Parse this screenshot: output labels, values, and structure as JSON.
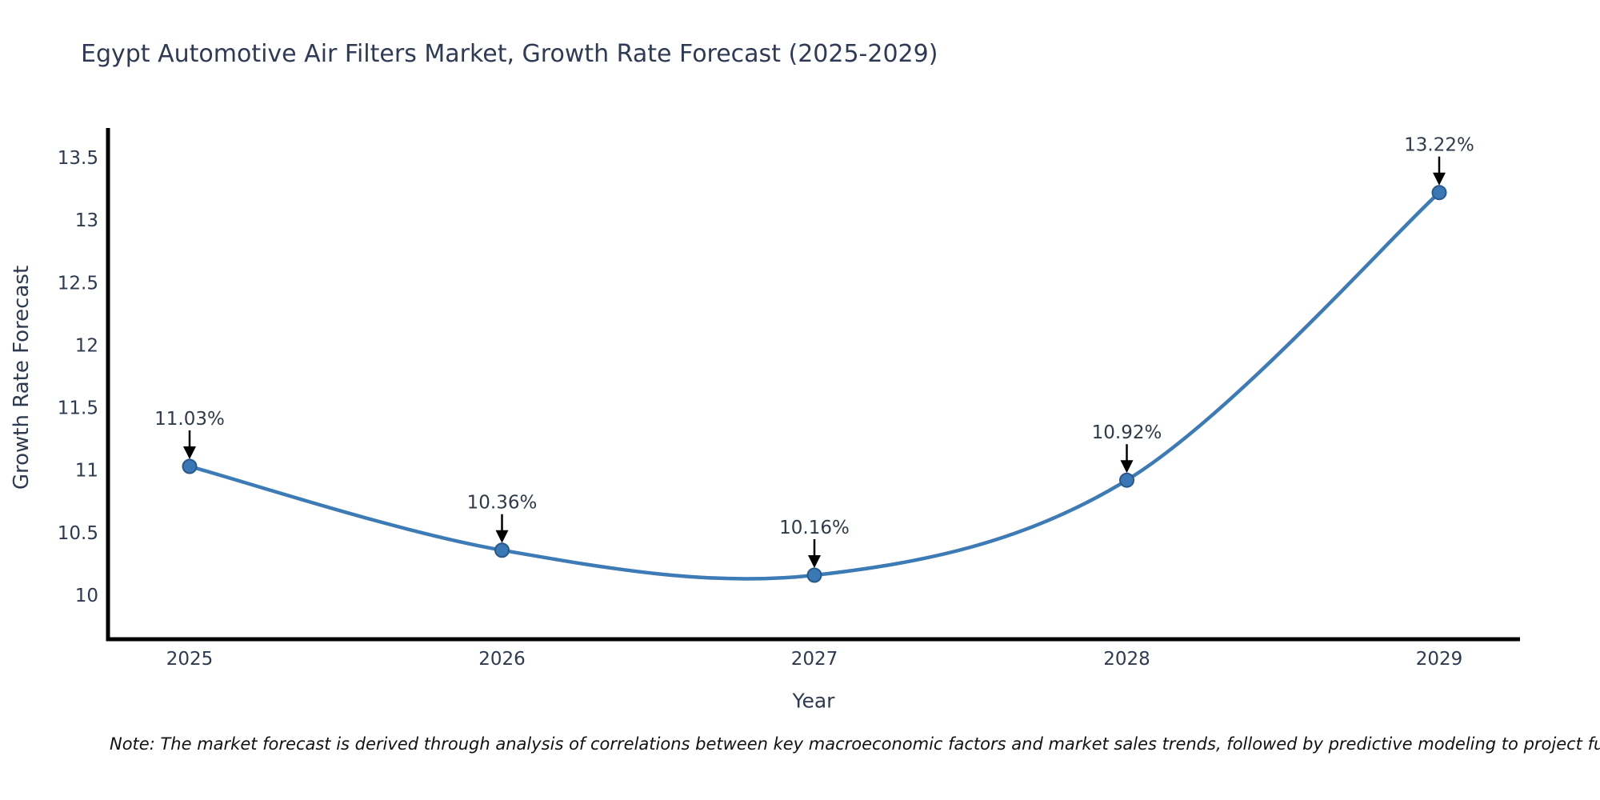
{
  "chart_data": {
    "type": "line",
    "title": "Egypt Automotive Air Filters Market, Growth Rate Forecast (2025-2029)",
    "xlabel": "Year",
    "ylabel": "Growth Rate Forecast",
    "x": [
      2025,
      2026,
      2027,
      2028,
      2029
    ],
    "series": [
      {
        "name": "Growth Rate Forecast",
        "values": [
          11.03,
          10.36,
          10.16,
          10.92,
          13.22
        ],
        "point_labels": [
          "11.03%",
          "10.36%",
          "10.16%",
          "10.92%",
          "13.22%"
        ]
      }
    ],
    "x_tick_labels": [
      "2025",
      "2026",
      "2027",
      "2028",
      "2029"
    ],
    "y_ticks": [
      10,
      10.5,
      11,
      11.5,
      12,
      12.5,
      13,
      13.5
    ],
    "y_tick_labels": [
      "10",
      "10.5",
      "11",
      "11.5",
      "12",
      "12.5",
      "13",
      "13.5"
    ],
    "ylim": [
      9.64,
      13.74
    ],
    "grid": false,
    "legend": "none",
    "line_smoothing": "spline",
    "colors": {
      "line": "#3c7bb6",
      "marker_fill": "#3a78b5",
      "marker_edge": "#28598c",
      "axis_spine": "#000000",
      "tick_text": "#2e3a50",
      "annotation_text": "#2f3a4a",
      "annotation_arrow": "#000000"
    }
  },
  "footnote": {
    "text": "Note: The market forecast is derived through analysis of correlations between key macroeconomic factors and market sales trends, followed by predictive modeling to project future sal"
  }
}
